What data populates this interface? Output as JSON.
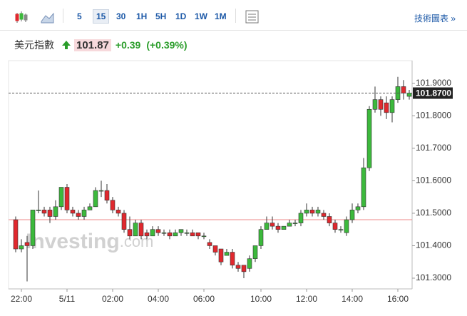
{
  "toolbar": {
    "intervals": [
      "5",
      "15",
      "30",
      "1H",
      "5H",
      "1D",
      "1W",
      "1M"
    ],
    "selected": 1,
    "link": "技術圖表 »"
  },
  "header": {
    "name": "美元指數",
    "price": "101.87",
    "change": "+0.39",
    "change_pct": "(+0.39%)"
  },
  "watermark": {
    "brand": "Investing",
    "suffix": ".com"
  },
  "chart_data": {
    "type": "candlestick",
    "up_color": "#3cb93c",
    "down_color": "#e0282e",
    "categories": [
      null,
      "22:00",
      null,
      null,
      null,
      null,
      null,
      null,
      null,
      "5/11",
      null,
      null,
      null,
      null,
      null,
      null,
      null,
      "02:00",
      null,
      null,
      null,
      null,
      null,
      null,
      null,
      "04:00",
      null,
      null,
      null,
      null,
      null,
      null,
      null,
      "06:00",
      null,
      null,
      null,
      null,
      null,
      null,
      null,
      null,
      null,
      "10:00",
      null,
      null,
      null,
      null,
      null,
      null,
      null,
      "12:00",
      null,
      null,
      null,
      null,
      null,
      null,
      null,
      "14:00",
      null,
      null,
      null,
      null,
      null,
      null,
      null,
      "16:00",
      null,
      null
    ],
    "open": [
      101.48,
      101.39,
      101.41,
      101.4,
      101.51,
      101.51,
      101.51,
      101.49,
      101.52,
      101.58,
      101.51,
      101.5,
      101.49,
      101.51,
      101.52,
      101.57,
      101.57,
      101.54,
      101.51,
      101.5,
      101.45,
      101.43,
      101.47,
      101.44,
      101.43,
      101.45,
      101.44,
      101.44,
      101.43,
      101.44,
      101.44,
      101.44,
      101.44,
      101.43,
      101.41,
      101.4,
      101.39,
      101.37,
      101.38,
      101.34,
      101.34,
      101.33,
      101.36,
      101.4,
      101.45,
      101.47,
      101.46,
      101.45,
      101.46,
      101.47,
      101.47,
      101.5,
      101.51,
      101.5,
      101.5,
      101.49,
      101.47,
      101.45,
      101.44,
      101.48,
      101.51,
      101.52,
      101.64,
      101.82,
      101.85,
      101.84,
      101.81,
      101.85,
      101.89,
      101.86
    ],
    "high": [
      101.49,
      101.42,
      101.43,
      101.51,
      101.57,
      101.52,
      101.52,
      101.54,
      101.58,
      101.59,
      101.52,
      101.51,
      101.52,
      101.53,
      101.58,
      101.6,
      101.59,
      101.55,
      101.52,
      101.51,
      101.49,
      101.48,
      101.48,
      101.45,
      101.46,
      101.46,
      101.45,
      101.45,
      101.45,
      101.45,
      101.45,
      101.45,
      101.44,
      101.44,
      101.42,
      101.4,
      101.39,
      101.39,
      101.39,
      101.35,
      101.34,
      101.37,
      101.4,
      101.46,
      101.49,
      101.49,
      101.47,
      101.46,
      101.48,
      101.48,
      101.51,
      101.53,
      101.52,
      101.52,
      101.51,
      101.5,
      101.48,
      101.46,
      101.49,
      101.53,
      101.53,
      101.67,
      101.83,
      101.89,
      101.86,
      101.86,
      101.86,
      101.92,
      101.91,
      101.88
    ],
    "low": [
      101.38,
      101.38,
      101.29,
      101.39,
      101.5,
      101.49,
      101.47,
      101.48,
      101.51,
      101.5,
      101.49,
      101.48,
      101.48,
      101.51,
      101.52,
      101.55,
      101.53,
      101.5,
      101.49,
      101.44,
      101.42,
      101.43,
      101.42,
      101.42,
      101.43,
      101.43,
      101.43,
      101.42,
      101.43,
      101.43,
      101.43,
      101.43,
      101.42,
      101.42,
      101.39,
      101.37,
      101.34,
      101.37,
      101.33,
      101.32,
      101.3,
      101.32,
      101.35,
      101.39,
      101.45,
      101.45,
      101.44,
      101.45,
      101.46,
      101.46,
      101.46,
      101.49,
      101.49,
      101.49,
      101.48,
      101.46,
      101.44,
      101.44,
      101.43,
      101.47,
      101.5,
      101.51,
      101.63,
      101.81,
      101.8,
      101.79,
      101.78,
      101.84,
      101.85,
      101.85
    ],
    "close": [
      101.39,
      101.4,
      101.4,
      101.51,
      101.51,
      101.5,
      101.49,
      101.52,
      101.58,
      101.51,
      101.5,
      101.49,
      101.51,
      101.52,
      101.57,
      101.57,
      101.54,
      101.51,
      101.5,
      101.45,
      101.43,
      101.47,
      101.43,
      101.43,
      101.45,
      101.44,
      101.44,
      101.43,
      101.44,
      101.45,
      101.44,
      101.43,
      101.43,
      101.43,
      101.4,
      101.38,
      101.35,
      101.38,
      101.34,
      101.33,
      101.32,
      101.36,
      101.4,
      101.45,
      101.47,
      101.46,
      101.45,
      101.46,
      101.47,
      101.47,
      101.5,
      101.51,
      101.5,
      101.51,
      101.49,
      101.47,
      101.45,
      101.45,
      101.48,
      101.51,
      101.52,
      101.64,
      101.82,
      101.85,
      101.82,
      101.81,
      101.85,
      101.89,
      101.87,
      101.87
    ],
    "ylim": [
      101.267,
      101.97
    ],
    "yticks": [
      {
        "value": 101.3,
        "label": "101.3000"
      },
      {
        "value": 101.4,
        "label": "101.4000"
      },
      {
        "value": 101.5,
        "label": "101.5000"
      },
      {
        "value": 101.6,
        "label": "101.6000"
      },
      {
        "value": 101.7,
        "label": "101.7000"
      },
      {
        "value": 101.8,
        "label": "101.8000"
      },
      {
        "value": 101.9,
        "label": "101.9000"
      }
    ],
    "current": {
      "value": 101.87,
      "label": "101.8700"
    },
    "reference": 101.48,
    "grid": false
  }
}
